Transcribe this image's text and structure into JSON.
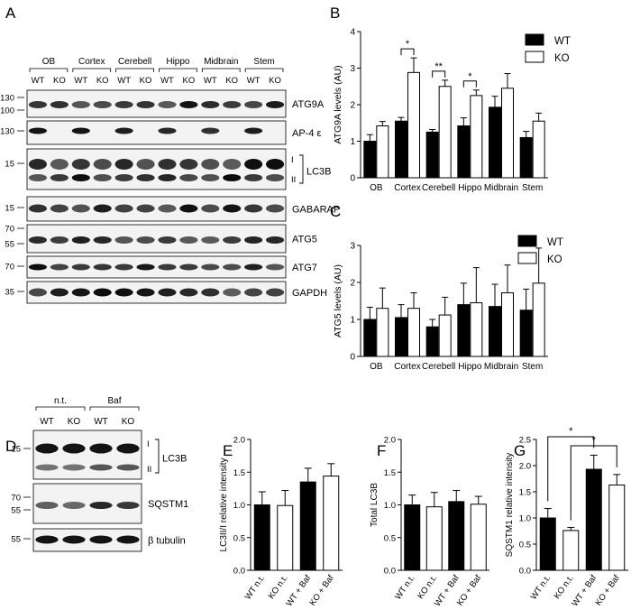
{
  "panel_letters": [
    "A",
    "B",
    "C",
    "D",
    "E",
    "F",
    "G"
  ],
  "blot_a": {
    "regions": [
      "OB",
      "Cortex",
      "Cerebell",
      "Hippo",
      "Midbrain",
      "Stem"
    ],
    "genotypes": [
      "WT",
      "KO"
    ],
    "strips": [
      {
        "protein": "ATG9A",
        "markers": [
          "130",
          "100"
        ]
      },
      {
        "protein": "AP-4 ε",
        "markers": [
          "130"
        ]
      },
      {
        "protein": "LC3B",
        "markers": [
          "15"
        ],
        "bands": [
          "I",
          "II"
        ]
      },
      {
        "protein": "GABARAP",
        "markers": [
          "15"
        ]
      },
      {
        "protein": "ATG5",
        "markers": [
          "70",
          "55"
        ]
      },
      {
        "protein": "ATG7",
        "markers": [
          "70"
        ]
      },
      {
        "protein": "GAPDH",
        "markers": [
          "35"
        ]
      }
    ]
  },
  "blot_d": {
    "treatments": [
      "n.t.",
      "Baf"
    ],
    "genotypes": [
      "WT",
      "KO"
    ],
    "strips": [
      {
        "protein": "LC3B",
        "markers": [
          "15"
        ],
        "bands": [
          "I",
          "II"
        ]
      },
      {
        "protein": "SQSTM1",
        "markers": [
          "70",
          "55"
        ]
      },
      {
        "protein": "β tubulin",
        "markers": [
          "55"
        ]
      }
    ]
  },
  "chart_data": [
    {
      "panel": "B",
      "type": "bar",
      "categories": [
        "OB",
        "Cortex",
        "Cerebell",
        "Hippo",
        "Midbrain",
        "Stem"
      ],
      "series": [
        {
          "name": "WT",
          "values": [
            1.0,
            1.55,
            1.25,
            1.42,
            1.93,
            1.1
          ],
          "errors": [
            0.18,
            0.1,
            0.07,
            0.22,
            0.3,
            0.17
          ],
          "color": "#000000"
        },
        {
          "name": "KO",
          "values": [
            1.42,
            2.88,
            2.5,
            2.25,
            2.45,
            1.55
          ],
          "errors": [
            0.12,
            0.4,
            0.17,
            0.15,
            0.4,
            0.22
          ],
          "color": "#ffffff"
        }
      ],
      "ylabel": "ATG9A levels (AU)",
      "ylim": [
        0,
        4
      ],
      "yticks": [
        0,
        1,
        2,
        3,
        4
      ],
      "significance": [
        {
          "category": "Cortex",
          "label": "*"
        },
        {
          "category": "Cerebell",
          "label": "**"
        },
        {
          "category": "Hippo",
          "label": "*"
        }
      ],
      "legend": "top-right"
    },
    {
      "panel": "C",
      "type": "bar",
      "categories": [
        "OB",
        "Cortex",
        "Cerebell",
        "Hippo",
        "Midbrain",
        "Stem"
      ],
      "series": [
        {
          "name": "WT",
          "values": [
            1.0,
            1.05,
            0.8,
            1.4,
            1.35,
            1.25
          ],
          "errors": [
            0.33,
            0.35,
            0.2,
            0.58,
            0.6,
            0.57
          ],
          "color": "#000000"
        },
        {
          "name": "KO",
          "values": [
            1.3,
            1.3,
            1.12,
            1.45,
            1.72,
            1.98
          ],
          "errors": [
            0.55,
            0.42,
            0.48,
            0.95,
            0.75,
            0.95
          ],
          "color": "#ffffff"
        }
      ],
      "ylabel": "ATG5 levels (AU)",
      "ylim": [
        0,
        3
      ],
      "yticks": [
        0,
        1,
        2,
        3
      ],
      "legend": "top-right"
    },
    {
      "panel": "E",
      "type": "bar",
      "categories": [
        "WT n.t.",
        "KO n.t.",
        "WT + Baf",
        "KO + Baf"
      ],
      "values": [
        1.0,
        0.99,
        1.35,
        1.44
      ],
      "errors": [
        0.2,
        0.23,
        0.21,
        0.19
      ],
      "colors": [
        "#000000",
        "#ffffff",
        "#000000",
        "#ffffff"
      ],
      "ylabel": "LC3II/I relative intensity",
      "ylim": [
        0,
        2.0
      ],
      "yticks": [
        "0.0",
        "0.5",
        "1.0",
        "1.5",
        "2.0"
      ]
    },
    {
      "panel": "F",
      "type": "bar",
      "categories": [
        "WT n.t.",
        "KO n.t.",
        "WT + Baf",
        "KO + Baf"
      ],
      "values": [
        1.0,
        0.97,
        1.05,
        1.01
      ],
      "errors": [
        0.15,
        0.22,
        0.17,
        0.12
      ],
      "colors": [
        "#000000",
        "#ffffff",
        "#000000",
        "#ffffff"
      ],
      "ylabel": "Total LC3B",
      "ylim": [
        0,
        2.0
      ],
      "yticks": [
        "0.0",
        "0.5",
        "1.0",
        "1.5",
        "2.0"
      ]
    },
    {
      "panel": "G",
      "type": "bar",
      "categories": [
        "WT n.t.",
        "KO n.t.",
        "WT + Baf",
        "KO + Baf"
      ],
      "values": [
        1.0,
        0.76,
        1.93,
        1.63
      ],
      "errors": [
        0.18,
        0.06,
        0.27,
        0.2
      ],
      "colors": [
        "#000000",
        "#ffffff",
        "#000000",
        "#ffffff"
      ],
      "ylabel": "SQSTM1 relative intensity",
      "ylim": [
        0,
        2.5
      ],
      "yticks": [
        "0.0",
        "0.5",
        "1.0",
        "1.5",
        "2.0",
        "2.5"
      ],
      "significance": [
        {
          "from": "WT n.t.",
          "to": "WT + Baf",
          "label": "*"
        },
        {
          "from": "KO n.t.",
          "to": "KO + Baf",
          "label": "*"
        }
      ]
    }
  ]
}
